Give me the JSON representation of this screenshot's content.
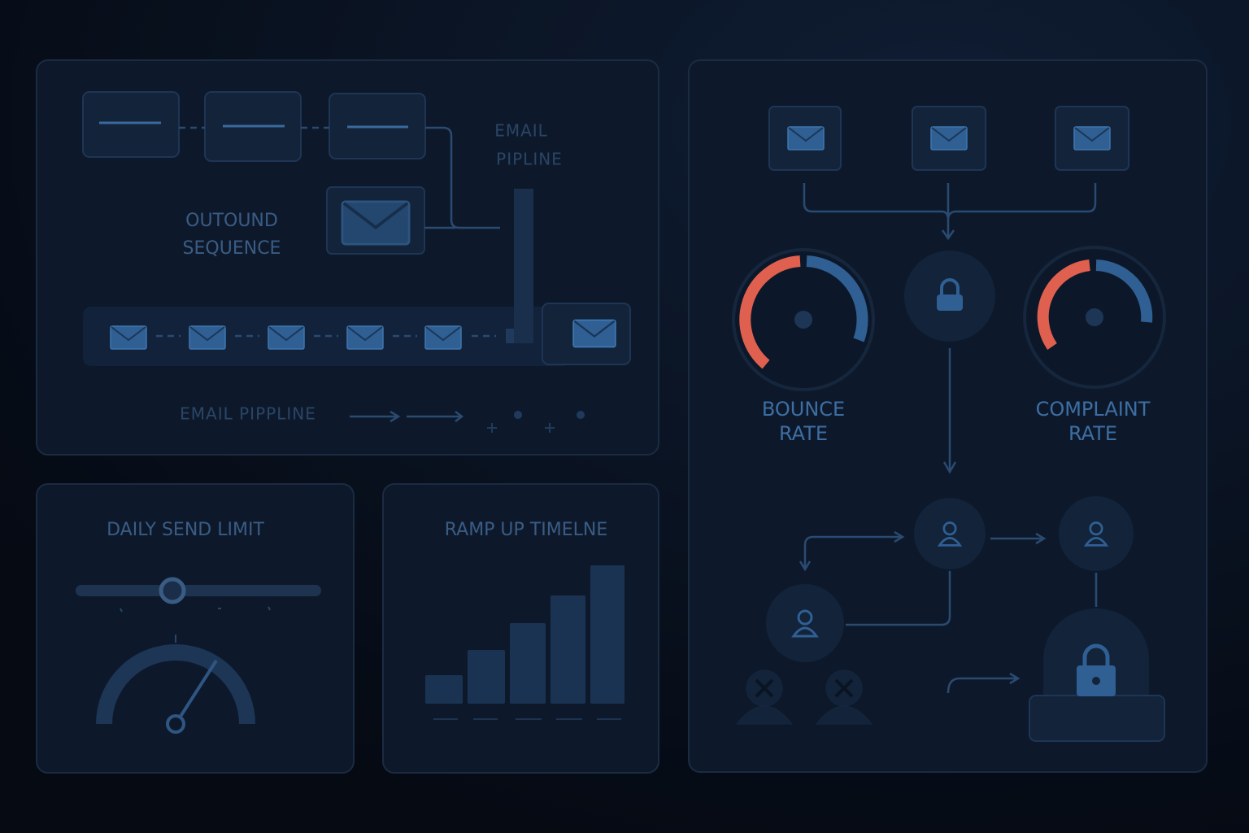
{
  "email_pipeline_panel": {
    "title_line1": "EMAIL",
    "title_line2": "PIPLINE",
    "sequence_line1": "OUTOUND",
    "sequence_line2": "SEQUENCE",
    "footer": "EMAIL PIPPLINE"
  },
  "daily_send_limit": {
    "title": "DAILY SEND LIMIT"
  },
  "ramp_up": {
    "title": "RAMP UP TIMELNE"
  },
  "deliverability": {
    "bounce_line1": "BOUNCE",
    "bounce_line2": "RATE",
    "complaint_line1": "COMPLAINT",
    "complaint_line2": "RATE"
  }
}
